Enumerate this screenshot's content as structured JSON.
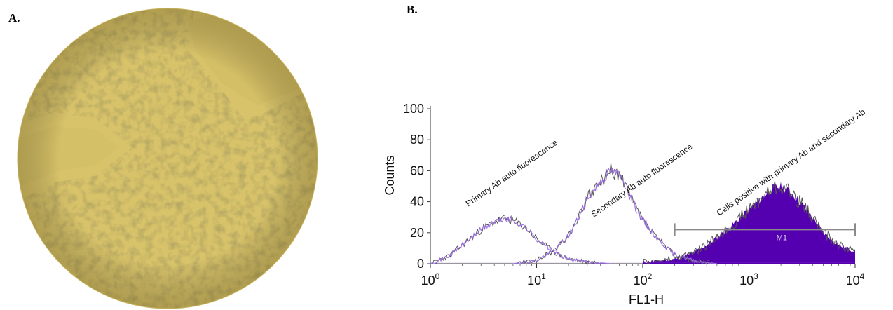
{
  "panel_a": {
    "label": "A.",
    "image_kind": "phase-contrast micrograph of cultured cells"
  },
  "panel_b": {
    "label": "B."
  },
  "colors": {
    "dark_trace": "#555555",
    "purple_trace": "#9b6fe0",
    "fill": "#5500b0",
    "gate": "#8a8a8a",
    "micrograph_base": "#d8c36a"
  },
  "chart_data": {
    "type": "area",
    "xlabel": "FL1-H",
    "ylabel": "Counts",
    "xscale": "log",
    "xlim": [
      1,
      10000
    ],
    "ylim": [
      0,
      100
    ],
    "yticks": [
      0,
      20,
      40,
      60,
      80,
      100
    ],
    "xticks": [
      {
        "value": 1,
        "base": "10",
        "exp": "0"
      },
      {
        "value": 10,
        "base": "10",
        "exp": "1"
      },
      {
        "value": 100,
        "base": "10",
        "exp": "2"
      },
      {
        "value": 1000,
        "base": "10",
        "exp": "3"
      },
      {
        "value": 10000,
        "base": "10",
        "exp": "4"
      }
    ],
    "series": [
      {
        "name": "Primary Ab auto fluorescence",
        "x": [
          1,
          1.5,
          2,
          3,
          4,
          5,
          6,
          8,
          10,
          13,
          16,
          20,
          30,
          50
        ],
        "y": [
          0,
          5,
          12,
          22,
          27,
          29,
          28,
          23,
          16,
          10,
          6,
          3,
          1,
          0
        ]
      },
      {
        "name": "Secondary Ab auto fluorescence",
        "x": [
          6,
          10,
          15,
          20,
          25,
          30,
          40,
          50,
          60,
          70,
          80,
          100,
          130,
          170,
          200,
          300,
          500
        ],
        "y": [
          0,
          2,
          9,
          18,
          30,
          42,
          53,
          60,
          57,
          50,
          40,
          28,
          18,
          10,
          6,
          2,
          0
        ]
      },
      {
        "name": "Cells positive with primary Ab and secondary Ab",
        "x": [
          100,
          200,
          300,
          400,
          500,
          700,
          1000,
          1300,
          1600,
          2000,
          2500,
          3000,
          4000,
          5000,
          7000,
          10000
        ],
        "y": [
          1,
          3,
          7,
          12,
          17,
          25,
          35,
          42,
          48,
          50,
          46,
          40,
          30,
          20,
          12,
          8
        ]
      }
    ],
    "gate": {
      "label": "M1",
      "x_start": 200,
      "x_end": 10000,
      "y": 22
    }
  }
}
